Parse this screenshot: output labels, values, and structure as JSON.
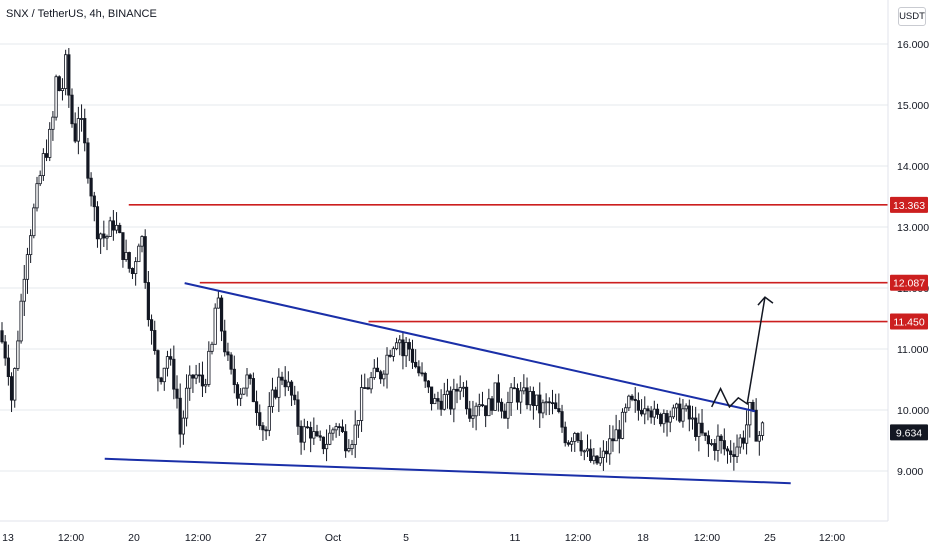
{
  "header": {
    "title": "SNX / TetherUS, 4h, BINANCE"
  },
  "price_axis": {
    "currency": "USDT"
  },
  "colors": {
    "up": "#131722",
    "down": "#131722",
    "level": "#cc1f1f",
    "trend": "#1a2fa8",
    "price_tag": "#131722",
    "grid": "#e6e8ec"
  },
  "chart_data": {
    "type": "candlestick",
    "title": "SNX / TetherUS, 4h, BINANCE",
    "ylim": [
      8.2,
      16.6
    ],
    "y_ticks": [
      "16.000",
      "15.000",
      "14.000",
      "13.000",
      "12.000",
      "11.000",
      "10.000",
      "9.000"
    ],
    "x_ticks": [
      "13",
      "12:00",
      "20",
      "12:00",
      "27",
      "Oct",
      "5",
      "11",
      "12:00",
      "18",
      "12:00",
      "25",
      "12:00"
    ],
    "price_levels": [
      "13.363",
      "12.087",
      "11.450"
    ],
    "current_price": "9.634",
    "trendlines": [
      {
        "name": "upper",
        "points": [
          [
            0.28,
            12.08
          ],
          [
            0.9,
            9.98
          ]
        ]
      },
      {
        "name": "lower",
        "points": [
          [
            0.19,
            9.2
          ],
          [
            0.94,
            8.8
          ]
        ]
      }
    ],
    "projection": [
      [
        0.86,
        10.05
      ],
      [
        0.87,
        10.35
      ],
      [
        0.88,
        10.05
      ],
      [
        0.89,
        10.2
      ],
      [
        0.9,
        10.1
      ],
      [
        0.92,
        11.85
      ]
    ],
    "close_path": [
      [
        0.0,
        11.3
      ],
      [
        0.01,
        10.8
      ],
      [
        0.015,
        10.1
      ],
      [
        0.02,
        11.0
      ],
      [
        0.03,
        12.5
      ],
      [
        0.04,
        13.3
      ],
      [
        0.05,
        14.1
      ],
      [
        0.06,
        14.6
      ],
      [
        0.065,
        15.5
      ],
      [
        0.07,
        15.1
      ],
      [
        0.075,
        15.7
      ],
      [
        0.08,
        15.0
      ],
      [
        0.085,
        14.4
      ],
      [
        0.09,
        14.9
      ],
      [
        0.1,
        14.0
      ],
      [
        0.11,
        13.0
      ],
      [
        0.12,
        12.8
      ],
      [
        0.13,
        13.1
      ],
      [
        0.14,
        12.6
      ],
      [
        0.15,
        12.2
      ],
      [
        0.16,
        13.0
      ],
      [
        0.17,
        11.4
      ],
      [
        0.18,
        10.5
      ],
      [
        0.19,
        10.9
      ],
      [
        0.2,
        10.3
      ],
      [
        0.205,
        9.5
      ],
      [
        0.21,
        10.2
      ],
      [
        0.22,
        10.6
      ],
      [
        0.23,
        10.4
      ],
      [
        0.24,
        11.0
      ],
      [
        0.245,
        11.9
      ],
      [
        0.25,
        11.4
      ],
      [
        0.26,
        10.6
      ],
      [
        0.27,
        10.3
      ],
      [
        0.28,
        10.5
      ],
      [
        0.29,
        10.1
      ],
      [
        0.3,
        9.6
      ],
      [
        0.31,
        10.3
      ],
      [
        0.32,
        10.6
      ],
      [
        0.33,
        10.2
      ],
      [
        0.34,
        9.6
      ],
      [
        0.35,
        9.7
      ],
      [
        0.36,
        9.4
      ],
      [
        0.37,
        9.5
      ],
      [
        0.38,
        9.8
      ],
      [
        0.39,
        9.5
      ],
      [
        0.4,
        9.6
      ],
      [
        0.41,
        10.3
      ],
      [
        0.42,
        10.5
      ],
      [
        0.43,
        10.6
      ],
      [
        0.44,
        11.0
      ],
      [
        0.45,
        11.3
      ],
      [
        0.455,
        10.9
      ],
      [
        0.46,
        11.1
      ],
      [
        0.47,
        10.7
      ],
      [
        0.48,
        10.4
      ],
      [
        0.49,
        10.1
      ],
      [
        0.5,
        10.2
      ],
      [
        0.51,
        10.1
      ],
      [
        0.52,
        10.5
      ],
      [
        0.53,
        10.0
      ],
      [
        0.54,
        10.2
      ],
      [
        0.55,
        10.0
      ],
      [
        0.56,
        10.3
      ],
      [
        0.57,
        10.0
      ],
      [
        0.58,
        10.3
      ],
      [
        0.59,
        10.2
      ],
      [
        0.6,
        10.2
      ],
      [
        0.61,
        10.0
      ],
      [
        0.62,
        10.1
      ],
      [
        0.63,
        9.9
      ],
      [
        0.64,
        9.5
      ],
      [
        0.65,
        9.7
      ],
      [
        0.66,
        9.3
      ],
      [
        0.67,
        9.1
      ],
      [
        0.68,
        9.2
      ],
      [
        0.69,
        9.5
      ],
      [
        0.7,
        9.7
      ],
      [
        0.71,
        10.1
      ],
      [
        0.72,
        10.0
      ],
      [
        0.73,
        10.2
      ],
      [
        0.74,
        9.8
      ],
      [
        0.75,
        10.0
      ],
      [
        0.76,
        9.9
      ],
      [
        0.77,
        10.0
      ],
      [
        0.78,
        9.8
      ],
      [
        0.79,
        9.6
      ],
      [
        0.8,
        9.4
      ],
      [
        0.81,
        9.5
      ],
      [
        0.82,
        9.3
      ],
      [
        0.83,
        9.4
      ],
      [
        0.84,
        9.6
      ],
      [
        0.845,
        10.0
      ],
      [
        0.85,
        9.8
      ],
      [
        0.855,
        9.55
      ],
      [
        0.86,
        9.7
      ]
    ]
  }
}
